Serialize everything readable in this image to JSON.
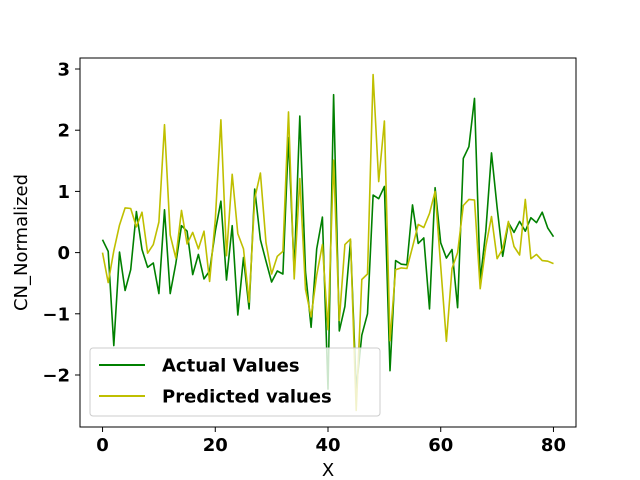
{
  "chart_data": {
    "type": "line",
    "title": "",
    "xlabel": "X",
    "ylabel": "CN_Normalized",
    "xlim": [
      -4,
      84
    ],
    "ylim": [
      -2.85,
      3.18
    ],
    "xticks": [
      0,
      20,
      40,
      60,
      80
    ],
    "xtick_labels": [
      "0",
      "20",
      "40",
      "60",
      "80"
    ],
    "yticks": [
      -2,
      -1,
      0,
      1,
      2,
      3
    ],
    "ytick_labels": [
      "−2",
      "−1",
      "0",
      "1",
      "2",
      "3"
    ],
    "grid": false,
    "legend": {
      "placement": "lower-left"
    },
    "x": [
      0,
      1,
      2,
      3,
      4,
      5,
      6,
      7,
      8,
      9,
      10,
      11,
      12,
      13,
      14,
      15,
      16,
      17,
      18,
      19,
      20,
      21,
      22,
      23,
      24,
      25,
      26,
      27,
      28,
      29,
      30,
      31,
      32,
      33,
      34,
      35,
      36,
      37,
      38,
      39,
      40,
      41,
      42,
      43,
      44,
      45,
      46,
      47,
      48,
      49,
      50,
      51,
      52,
      53,
      54,
      55,
      56,
      57,
      58,
      59,
      60,
      61,
      62,
      63,
      64,
      65,
      66,
      67,
      68,
      69,
      70,
      71,
      72,
      73,
      74,
      75,
      76,
      77,
      78,
      79,
      80
    ],
    "series": [
      {
        "name": "Actual Values",
        "color": "#008000",
        "values": [
          0.21,
          0.02,
          -1.52,
          0.01,
          -0.62,
          -0.28,
          0.67,
          0.05,
          -0.24,
          -0.17,
          -0.67,
          0.7,
          -0.67,
          -0.18,
          0.44,
          0.35,
          -0.36,
          -0.03,
          -0.43,
          -0.3,
          0.35,
          0.84,
          -0.45,
          0.44,
          -1.02,
          -0.08,
          -0.92,
          1.04,
          0.21,
          -0.14,
          -0.48,
          -0.3,
          -0.35,
          1.88,
          -0.31,
          2.23,
          -0.31,
          -1.22,
          0.06,
          0.58,
          -2.23,
          2.58,
          -1.28,
          -0.88,
          0.19,
          -2.23,
          -1.35,
          -1.0,
          0.94,
          0.88,
          1.08,
          -1.93,
          -0.13,
          -0.19,
          -0.2,
          0.78,
          0.15,
          0.24,
          -0.92,
          1.06,
          0.16,
          -0.09,
          0.05,
          -0.9,
          1.54,
          1.73,
          2.52,
          -0.46,
          0.35,
          1.63,
          0.74,
          -0.06,
          0.49,
          0.33,
          0.51,
          0.35,
          0.57,
          0.49,
          0.66,
          0.4,
          0.26
        ]
      },
      {
        "name": "Predicted values",
        "color": "#bfbf00",
        "values": [
          0.0,
          -0.49,
          0.03,
          0.45,
          0.73,
          0.72,
          0.42,
          0.66,
          -0.01,
          0.13,
          0.5,
          2.09,
          0.29,
          -0.09,
          0.69,
          0.14,
          0.33,
          0.06,
          0.35,
          -0.47,
          0.54,
          2.17,
          -0.05,
          1.28,
          0.31,
          0.06,
          -0.81,
          0.88,
          1.3,
          0.16,
          -0.35,
          -0.06,
          0.02,
          2.3,
          -0.43,
          1.21,
          -0.6,
          -1.05,
          -0.37,
          0.13,
          -1.26,
          1.51,
          -1.11,
          0.13,
          0.22,
          -2.58,
          -0.44,
          -0.35,
          2.91,
          1.16,
          2.15,
          -1.44,
          -0.28,
          -0.25,
          -0.26,
          0.09,
          0.46,
          0.41,
          0.64,
          1.0,
          -0.22,
          -1.45,
          -0.26,
          0.0,
          0.77,
          0.87,
          0.86,
          -0.59,
          0.1,
          0.59,
          -0.1,
          0.06,
          0.51,
          0.1,
          -0.04,
          0.87,
          -0.1,
          -0.03,
          -0.13,
          -0.14,
          -0.18
        ]
      }
    ]
  }
}
